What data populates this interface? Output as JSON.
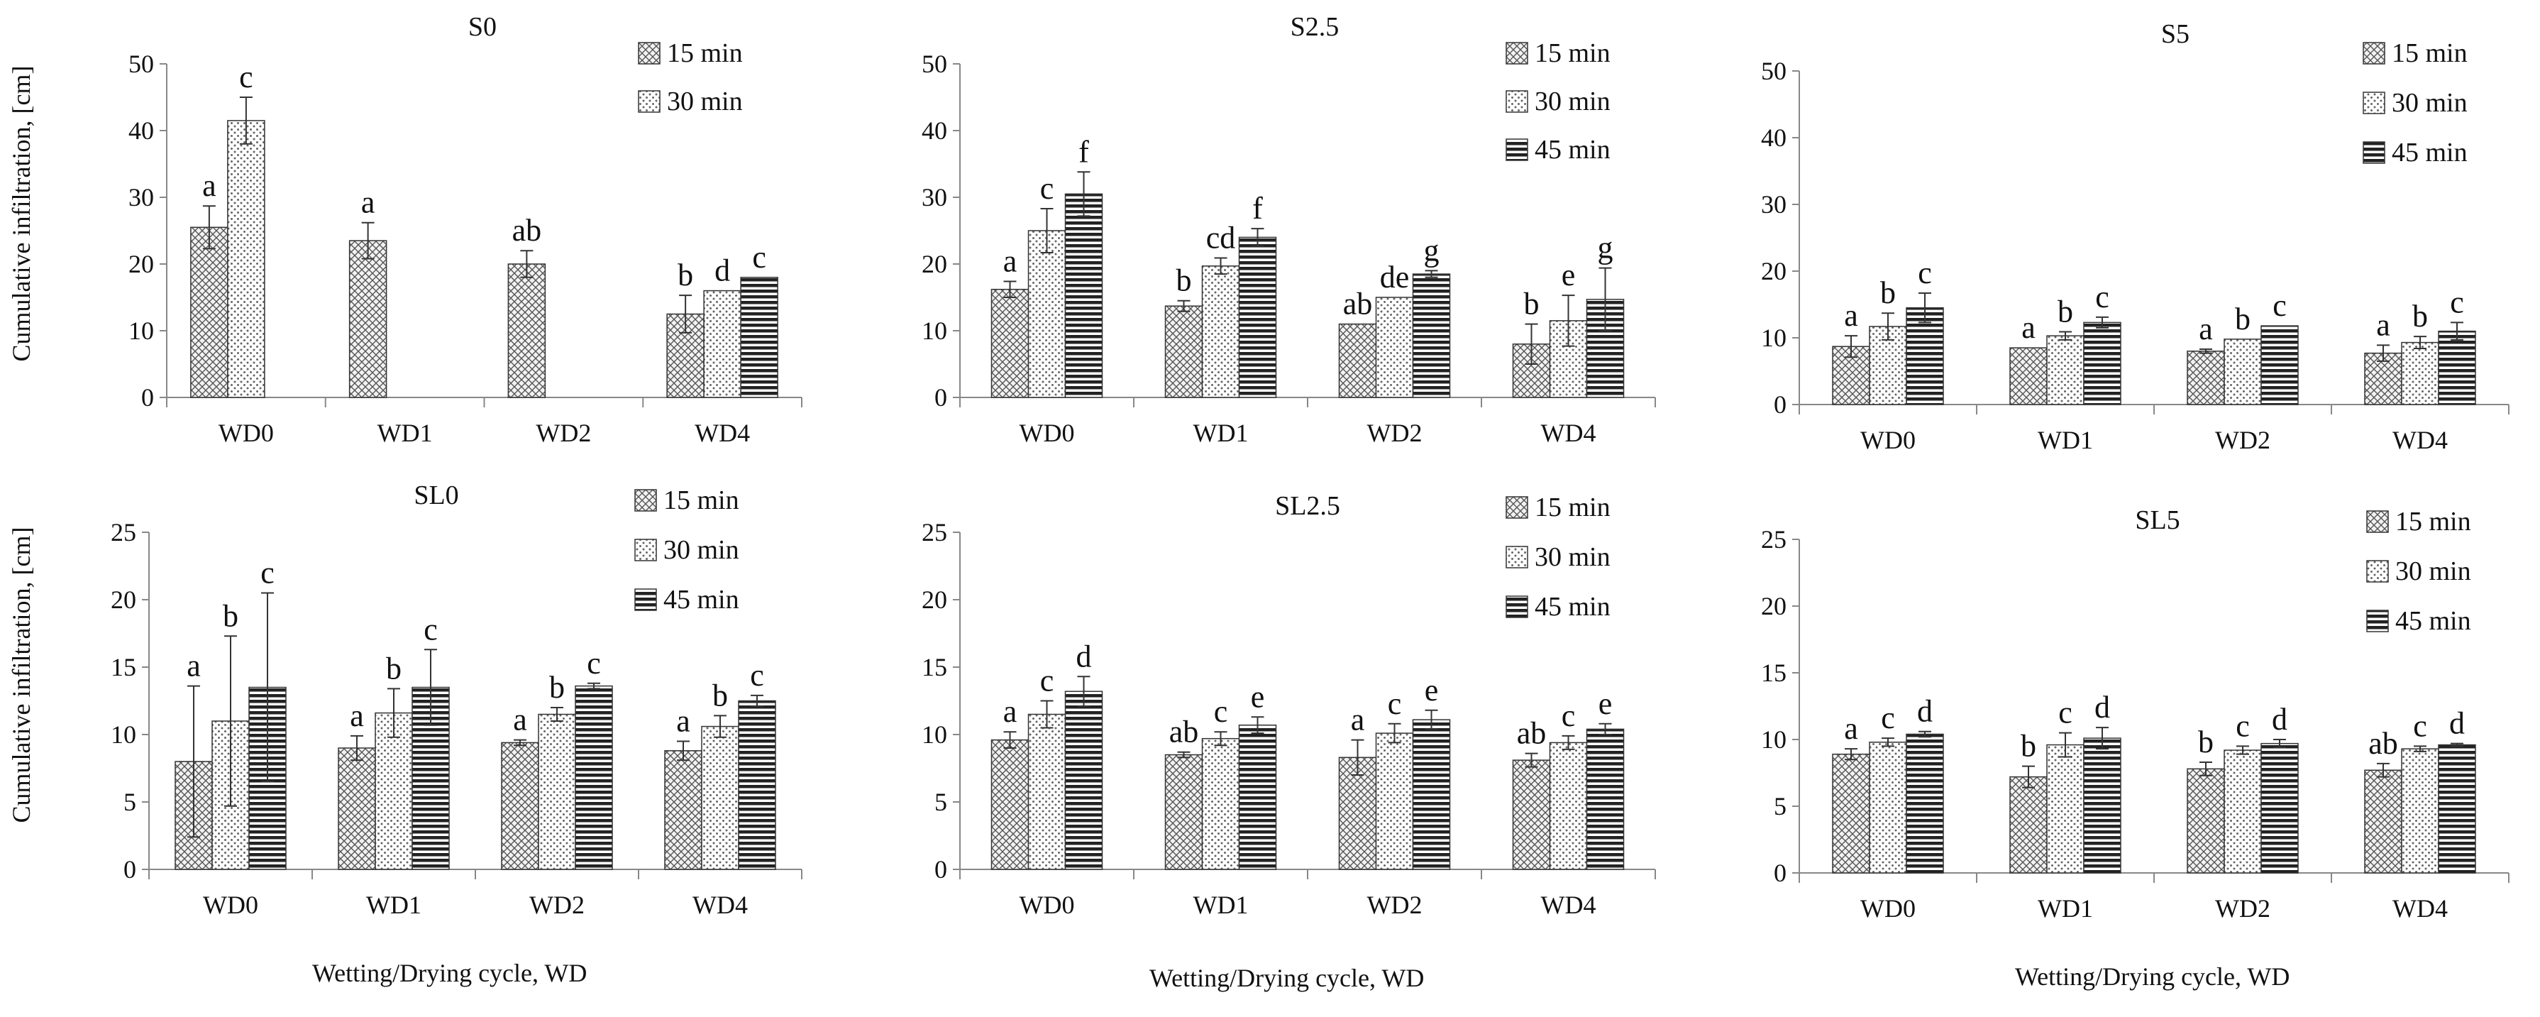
{
  "figure": {
    "ylabel": "Cumulative infiltration, [cm]",
    "xlabel": "Wetting/Drying cycle, WD"
  },
  "chart_data": [
    {
      "type": "bar",
      "title": "S0",
      "categories": [
        "WD0",
        "WD1",
        "WD2",
        "WD4"
      ],
      "ylim": [
        0,
        50
      ],
      "yticks": [
        0,
        10,
        20,
        30,
        40,
        50
      ],
      "legend_position": "top-right",
      "legend": [
        "15 min",
        "30 min"
      ],
      "ylabel": "Cumulative infiltration, [cm]",
      "xlabel": "",
      "series": [
        {
          "name": "15 min",
          "pattern": "crosshatch",
          "values": [
            25.5,
            23.5,
            20.0,
            12.5
          ],
          "errors": [
            3.2,
            2.7,
            2.0,
            2.8
          ],
          "labels": [
            "a",
            "a",
            "ab",
            "b"
          ]
        },
        {
          "name": "30 min",
          "pattern": "dots",
          "values": [
            41.5,
            null,
            null,
            16.0
          ],
          "errors": [
            3.5,
            0,
            0,
            0
          ],
          "labels": [
            "c",
            "",
            "",
            "d"
          ]
        },
        {
          "name": "45 min",
          "pattern": "stripes",
          "values": [
            null,
            null,
            null,
            18.0
          ],
          "errors": [
            0,
            0,
            0,
            0
          ],
          "labels": [
            "",
            "",
            "",
            "c"
          ]
        }
      ]
    },
    {
      "type": "bar",
      "title": "S2.5",
      "categories": [
        "WD0",
        "WD1",
        "WD2",
        "WD4"
      ],
      "ylim": [
        0,
        50
      ],
      "yticks": [
        0,
        10,
        20,
        30,
        40,
        50
      ],
      "legend_position": "top-right",
      "legend": [
        "15 min",
        "30 min",
        "45 min"
      ],
      "series": [
        {
          "name": "15 min",
          "pattern": "crosshatch",
          "values": [
            16.2,
            13.7,
            11.0,
            8.0
          ],
          "errors": [
            1.2,
            0.8,
            0,
            3.0
          ],
          "labels": [
            "a",
            "b",
            "ab",
            "b"
          ]
        },
        {
          "name": "30 min",
          "pattern": "dots",
          "values": [
            25.0,
            19.7,
            15.0,
            11.5
          ],
          "errors": [
            3.3,
            1.2,
            0,
            3.8
          ],
          "labels": [
            "c",
            "cd",
            "de",
            "e"
          ]
        },
        {
          "name": "45 min",
          "pattern": "stripes",
          "values": [
            30.5,
            24.0,
            18.5,
            14.7
          ],
          "errors": [
            3.3,
            1.3,
            0.5,
            4.7
          ],
          "labels": [
            "f",
            "f",
            "g",
            "g"
          ]
        }
      ]
    },
    {
      "type": "bar",
      "title": "S5",
      "categories": [
        "WD0",
        "WD1",
        "WD2",
        "WD4"
      ],
      "ylim": [
        0,
        50
      ],
      "yticks": [
        0,
        10,
        20,
        30,
        40,
        50
      ],
      "legend_position": "top-right",
      "legend": [
        "15 min",
        "30 min",
        "45 min"
      ],
      "series": [
        {
          "name": "15 min",
          "pattern": "crosshatch",
          "values": [
            8.7,
            8.5,
            8.0,
            7.7
          ],
          "errors": [
            1.6,
            0,
            0.3,
            1.2
          ],
          "labels": [
            "a",
            "a",
            "a",
            "a"
          ]
        },
        {
          "name": "30 min",
          "pattern": "dots",
          "values": [
            11.7,
            10.3,
            9.8,
            9.3
          ],
          "errors": [
            2.0,
            0.6,
            0,
            0.9
          ],
          "labels": [
            "b",
            "b",
            "b",
            "b"
          ]
        },
        {
          "name": "45 min",
          "pattern": "stripes",
          "values": [
            14.5,
            12.3,
            11.8,
            11.0
          ],
          "errors": [
            2.2,
            0.8,
            0,
            1.3
          ],
          "labels": [
            "c",
            "c",
            "c",
            "c"
          ]
        }
      ]
    },
    {
      "type": "bar",
      "title": "SL0",
      "categories": [
        "WD0",
        "WD1",
        "WD2",
        "WD4"
      ],
      "ylim": [
        0,
        25
      ],
      "yticks": [
        0,
        5,
        10,
        15,
        20,
        25
      ],
      "legend_position": "top-right",
      "legend": [
        "15 min",
        "30 min",
        "45 min"
      ],
      "ylabel": "Cumulative infiltration, [cm]",
      "series": [
        {
          "name": "15 min",
          "pattern": "crosshatch",
          "values": [
            8.0,
            9.0,
            9.4,
            8.8
          ],
          "errors": [
            5.6,
            0.9,
            0.2,
            0.7
          ],
          "labels": [
            "a",
            "a",
            "a",
            "a"
          ]
        },
        {
          "name": "30 min",
          "pattern": "dots",
          "values": [
            11.0,
            11.6,
            11.5,
            10.6
          ],
          "errors": [
            6.3,
            1.8,
            0.5,
            0.8
          ],
          "labels": [
            "b",
            "b",
            "b",
            "b"
          ]
        },
        {
          "name": "45 min",
          "pattern": "stripes",
          "values": [
            13.5,
            13.5,
            13.6,
            12.5
          ],
          "errors": [
            7.0,
            2.8,
            0.2,
            0.4
          ],
          "labels": [
            "c",
            "c",
            "c",
            "c"
          ]
        }
      ]
    },
    {
      "type": "bar",
      "title": "SL2.5",
      "categories": [
        "WD0",
        "WD1",
        "WD2",
        "WD4"
      ],
      "ylim": [
        0,
        25
      ],
      "yticks": [
        0,
        5,
        10,
        15,
        20,
        25
      ],
      "legend_position": "top-right",
      "legend": [
        "15 min",
        "30 min",
        "45 min"
      ],
      "series": [
        {
          "name": "15 min",
          "pattern": "crosshatch",
          "values": [
            9.6,
            8.5,
            8.3,
            8.1
          ],
          "errors": [
            0.6,
            0.2,
            1.3,
            0.5
          ],
          "labels": [
            "a",
            "ab",
            "a",
            "ab"
          ]
        },
        {
          "name": "30 min",
          "pattern": "dots",
          "values": [
            11.5,
            9.7,
            10.1,
            9.4
          ],
          "errors": [
            1.0,
            0.5,
            0.7,
            0.5
          ],
          "labels": [
            "c",
            "c",
            "c",
            "c"
          ]
        },
        {
          "name": "45 min",
          "pattern": "stripes",
          "values": [
            13.2,
            10.7,
            11.1,
            10.4
          ],
          "errors": [
            1.1,
            0.6,
            0.7,
            0.4
          ],
          "labels": [
            "d",
            "e",
            "e",
            "e"
          ]
        }
      ]
    },
    {
      "type": "bar",
      "title": "SL5",
      "categories": [
        "WD0",
        "WD1",
        "WD2",
        "WD4"
      ],
      "ylim": [
        0,
        25
      ],
      "yticks": [
        0,
        5,
        10,
        15,
        20,
        25
      ],
      "legend_position": "top-right",
      "legend": [
        "15 min",
        "30 min",
        "45 min"
      ],
      "series": [
        {
          "name": "15 min",
          "pattern": "crosshatch",
          "values": [
            8.9,
            7.2,
            7.8,
            7.7
          ],
          "errors": [
            0.4,
            0.8,
            0.5,
            0.5
          ],
          "labels": [
            "a",
            "b",
            "b",
            "ab"
          ]
        },
        {
          "name": "30 min",
          "pattern": "dots",
          "values": [
            9.8,
            9.6,
            9.2,
            9.3
          ],
          "errors": [
            0.3,
            0.9,
            0.3,
            0.2
          ],
          "labels": [
            "c",
            "c",
            "c",
            "c"
          ]
        },
        {
          "name": "45 min",
          "pattern": "stripes",
          "values": [
            10.4,
            10.1,
            9.7,
            9.6
          ],
          "errors": [
            0.2,
            0.8,
            0.3,
            0.1
          ],
          "labels": [
            "d",
            "d",
            "d",
            "d"
          ]
        }
      ]
    }
  ]
}
